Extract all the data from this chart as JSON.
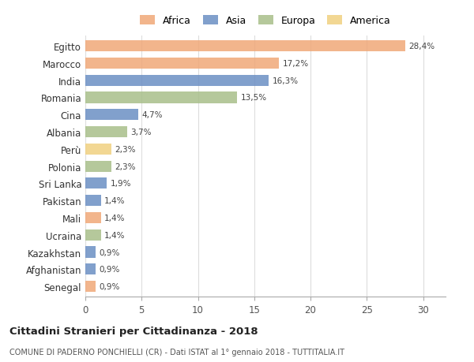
{
  "categories": [
    "Egitto",
    "Marocco",
    "India",
    "Romania",
    "Cina",
    "Albania",
    "Perù",
    "Polonia",
    "Sri Lanka",
    "Pakistan",
    "Mali",
    "Ucraina",
    "Kazakhstan",
    "Afghanistan",
    "Senegal"
  ],
  "values": [
    28.4,
    17.2,
    16.3,
    13.5,
    4.7,
    3.7,
    2.3,
    2.3,
    1.9,
    1.4,
    1.4,
    1.4,
    0.9,
    0.9,
    0.9
  ],
  "labels": [
    "28,4%",
    "17,2%",
    "16,3%",
    "13,5%",
    "4,7%",
    "3,7%",
    "2,3%",
    "2,3%",
    "1,9%",
    "1,4%",
    "1,4%",
    "1,4%",
    "0,9%",
    "0,9%",
    "0,9%"
  ],
  "continents": [
    "Africa",
    "Africa",
    "Asia",
    "Europa",
    "Asia",
    "Europa",
    "America",
    "Europa",
    "Asia",
    "Asia",
    "Africa",
    "Europa",
    "Asia",
    "Asia",
    "Africa"
  ],
  "colors": {
    "Africa": "#F0A878",
    "Asia": "#6B8FC4",
    "Europa": "#A8BF8A",
    "America": "#F0D080"
  },
  "legend_order": [
    "Africa",
    "Asia",
    "Europa",
    "America"
  ],
  "title": "Cittadini Stranieri per Cittadinanza - 2018",
  "subtitle": "COMUNE DI PADERNO PONCHIELLI (CR) - Dati ISTAT al 1° gennaio 2018 - TUTTITALIA.IT",
  "xlim": [
    0,
    32
  ],
  "xticks": [
    0,
    5,
    10,
    15,
    20,
    25,
    30
  ],
  "background_color": "#ffffff",
  "grid_color": "#dddddd"
}
